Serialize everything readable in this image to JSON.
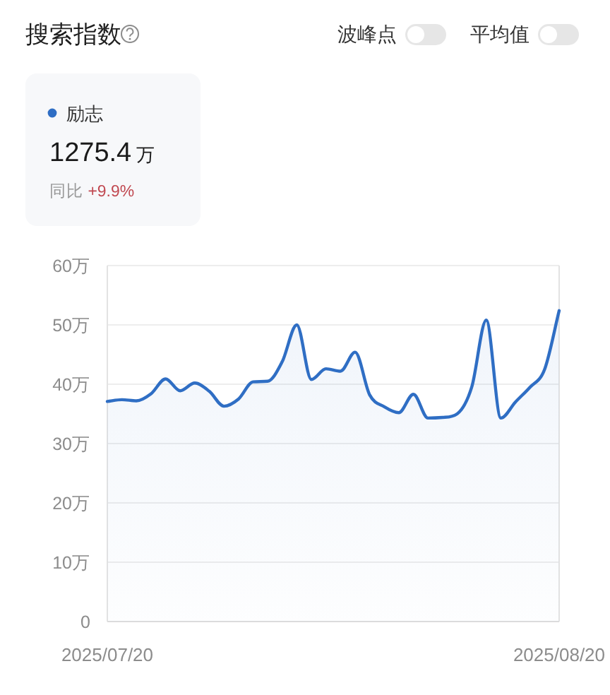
{
  "chart_data": {
    "type": "area",
    "title": "搜索指数",
    "x": [
      "2025-07-20",
      "2025-07-21",
      "2025-07-22",
      "2025-07-23",
      "2025-07-24",
      "2025-07-25",
      "2025-07-26",
      "2025-07-27",
      "2025-07-28",
      "2025-07-29",
      "2025-07-30",
      "2025-07-31",
      "2025-08-01",
      "2025-08-02",
      "2025-08-03",
      "2025-08-04",
      "2025-08-05",
      "2025-08-06",
      "2025-08-07",
      "2025-08-08",
      "2025-08-09",
      "2025-08-10",
      "2025-08-11",
      "2025-08-12",
      "2025-08-13",
      "2025-08-14",
      "2025-08-15",
      "2025-08-16",
      "2025-08-17",
      "2025-08-18",
      "2025-08-19",
      "2025-08-20"
    ],
    "series": [
      {
        "name": "励志",
        "color": "#2f6ec4",
        "values": [
          37.1,
          37.4,
          37.2,
          38.4,
          40.9,
          38.9,
          40.2,
          38.8,
          36.3,
          37.5,
          40.4,
          40.5,
          43.8,
          50.0,
          40.8,
          42.6,
          42.2,
          45.4,
          38.2,
          36.2,
          35.2,
          38.3,
          34.3,
          34.4,
          35.0,
          39.5,
          50.8,
          34.3,
          37.0,
          39.5,
          42.5,
          52.4
        ]
      }
    ],
    "xlim": [
      "2025-07-20",
      "2025-08-20"
    ],
    "xticks": [
      {
        "value": "2025-07-20",
        "label": "2025/07/20"
      },
      {
        "value": "2025-08-20",
        "label": "2025/08/20"
      }
    ],
    "ylim": [
      0,
      60
    ],
    "yticks": [
      0,
      {
        "value": 10,
        "label": "10万"
      },
      {
        "value": 20,
        "label": "20万"
      },
      {
        "value": 30,
        "label": "30万"
      },
      {
        "value": 40,
        "label": "40万"
      },
      {
        "value": 50,
        "label": "50万"
      },
      {
        "value": 60,
        "label": "60万"
      }
    ],
    "grid": "y",
    "legend": "top left",
    "annotations": [
      "1275.4 万",
      "同比 +9.9%",
      "波峰点",
      "平均值"
    ]
  }
}
